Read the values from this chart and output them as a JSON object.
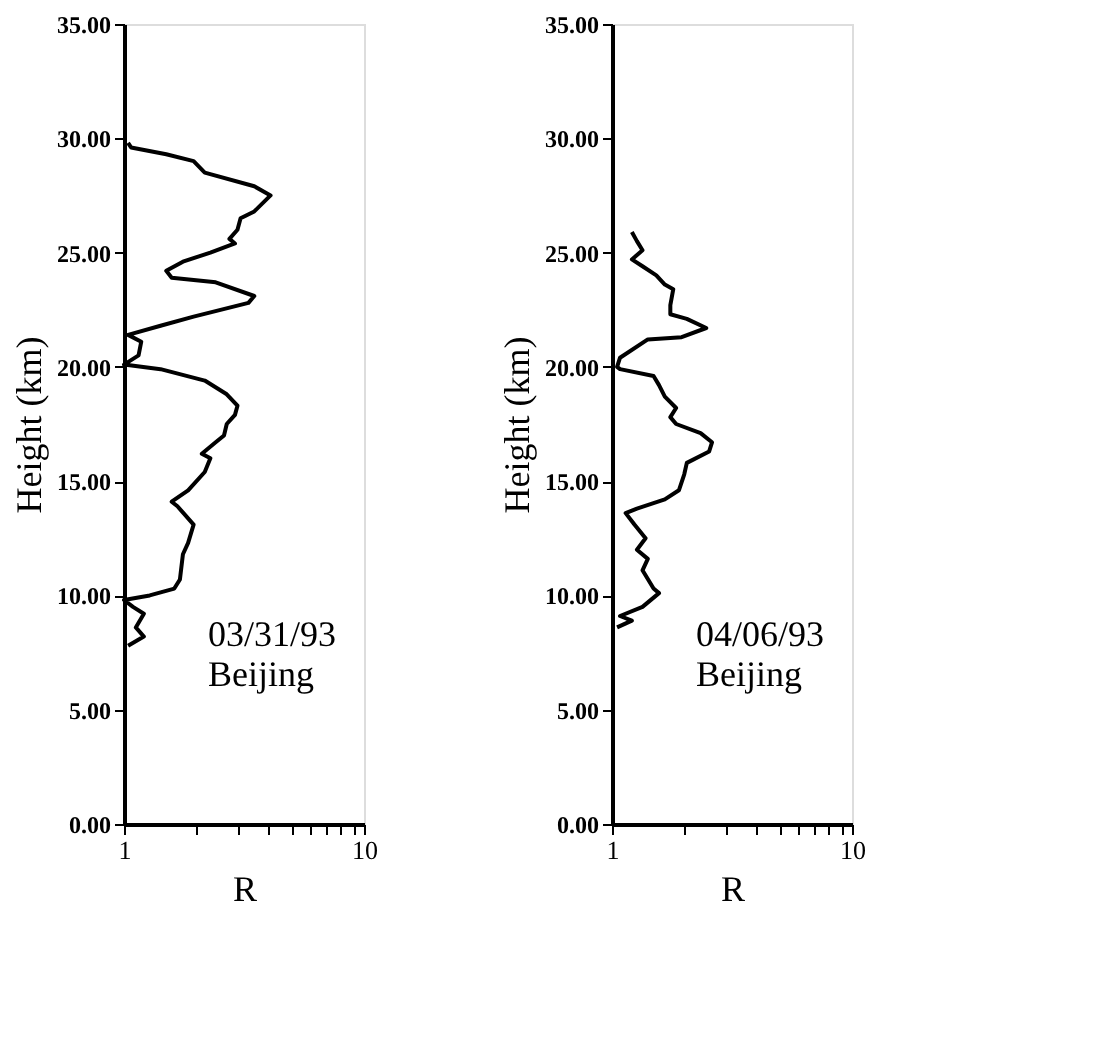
{
  "chart_data": [
    {
      "type": "line",
      "xlabel": "R",
      "ylabel": "Height (km)",
      "annotations": [
        "03/31/93",
        "Beijing"
      ],
      "log": "x",
      "grid": false,
      "line_style": "solid",
      "marker": "none",
      "xlim": [
        1,
        10
      ],
      "xticks": [
        1,
        {
          "value": 2,
          "label": null
        },
        {
          "value": 3,
          "label": null
        },
        {
          "value": 4,
          "label": null
        },
        {
          "value": 5,
          "label": null
        },
        {
          "value": 6,
          "label": null
        },
        {
          "value": 7,
          "label": null
        },
        {
          "value": 8,
          "label": null
        },
        {
          "value": 9,
          "label": null
        },
        10
      ],
      "ylim": [
        0,
        35
      ],
      "yticks": [
        {
          "value": 0,
          "label": "0.00"
        },
        {
          "value": 5,
          "label": "5.00"
        },
        {
          "value": 10,
          "label": "10.00"
        },
        {
          "value": 15,
          "label": "15.00"
        },
        {
          "value": 20,
          "label": "20.00"
        },
        {
          "value": 25,
          "label": "25.00"
        },
        {
          "value": 30,
          "label": "30.00"
        },
        {
          "value": 35,
          "label": "35.00"
        }
      ],
      "series": [
        {
          "color": "#000000",
          "x": [
            1.04,
            1.21,
            1.12,
            1.21,
            1.09,
            1.0,
            1.28,
            1.62,
            1.71,
            1.76,
            1.85,
            1.95,
            1.67,
            1.58,
            1.85,
            2.17,
            2.29,
            2.11,
            2.41,
            2.61,
            2.68,
            2.9,
            2.97,
            2.68,
            2.17,
            1.42,
            1.0,
            1.15,
            1.18,
            1.04,
            1.42,
            1.95,
            3.3,
            3.49,
            2.41,
            1.58,
            1.5,
            1.76,
            2.29,
            2.9,
            2.75,
            2.97,
            3.06,
            3.49,
            4.08,
            3.49,
            2.17,
            1.95,
            1.5,
            1.07,
            1.04
          ],
          "values": [
            7.8,
            8.2,
            8.6,
            9.2,
            9.5,
            9.8,
            10.0,
            10.3,
            10.7,
            11.8,
            12.3,
            13.1,
            13.9,
            14.1,
            14.6,
            15.4,
            16.0,
            16.2,
            16.7,
            17.0,
            17.5,
            17.9,
            18.3,
            18.8,
            19.4,
            19.9,
            20.1,
            20.5,
            21.1,
            21.4,
            21.8,
            22.2,
            22.8,
            23.1,
            23.7,
            23.9,
            24.2,
            24.6,
            25.0,
            25.4,
            25.6,
            26.0,
            26.5,
            26.8,
            27.5,
            27.9,
            28.5,
            29.0,
            29.3,
            29.6,
            29.8
          ]
        }
      ]
    },
    {
      "type": "line",
      "xlabel": "R",
      "ylabel": "Height (km)",
      "annotations": [
        "04/06/93",
        "Beijing"
      ],
      "log": "x",
      "grid": false,
      "line_style": "solid",
      "marker": "none",
      "xlim": [
        1,
        10
      ],
      "xticks": [
        1,
        {
          "value": 2,
          "label": null
        },
        {
          "value": 3,
          "label": null
        },
        {
          "value": 4,
          "label": null
        },
        {
          "value": 5,
          "label": null
        },
        {
          "value": 6,
          "label": null
        },
        {
          "value": 7,
          "label": null
        },
        {
          "value": 8,
          "label": null
        },
        {
          "value": 9,
          "label": null
        },
        10
      ],
      "ylim": [
        0,
        35
      ],
      "yticks": [
        {
          "value": 0,
          "label": "0.00"
        },
        {
          "value": 5,
          "label": "5.00"
        },
        {
          "value": 10,
          "label": "10.00"
        },
        {
          "value": 15,
          "label": "15.00"
        },
        {
          "value": 20,
          "label": "20.00"
        },
        {
          "value": 25,
          "label": "25.00"
        },
        {
          "value": 30,
          "label": "30.00"
        },
        {
          "value": 35,
          "label": "35.00"
        }
      ],
      "series": [
        {
          "color": "#000000",
          "x": [
            1.05,
            1.21,
            1.08,
            1.34,
            1.57,
            1.49,
            1.34,
            1.41,
            1.27,
            1.38,
            1.24,
            1.14,
            1.27,
            1.66,
            1.9,
            2.0,
            2.05,
            2.54,
            2.61,
            2.34,
            1.85,
            1.75,
            1.85,
            1.66,
            1.57,
            1.49,
            1.08,
            1.05,
            1.08,
            1.41,
            1.95,
            2.47,
            2.05,
            1.75,
            1.75,
            1.8,
            1.66,
            1.53,
            1.34,
            1.21,
            1.34,
            1.27,
            1.21
          ],
          "values": [
            8.6,
            8.9,
            9.1,
            9.5,
            10.1,
            10.3,
            11.1,
            11.6,
            12.0,
            12.5,
            13.1,
            13.6,
            13.8,
            14.2,
            14.6,
            15.3,
            15.8,
            16.3,
            16.7,
            17.1,
            17.5,
            17.8,
            18.2,
            18.7,
            19.2,
            19.6,
            19.9,
            20.0,
            20.4,
            21.2,
            21.3,
            21.7,
            22.1,
            22.3,
            22.7,
            23.4,
            23.6,
            24.0,
            24.4,
            24.7,
            25.1,
            25.5,
            25.9
          ]
        }
      ]
    }
  ]
}
